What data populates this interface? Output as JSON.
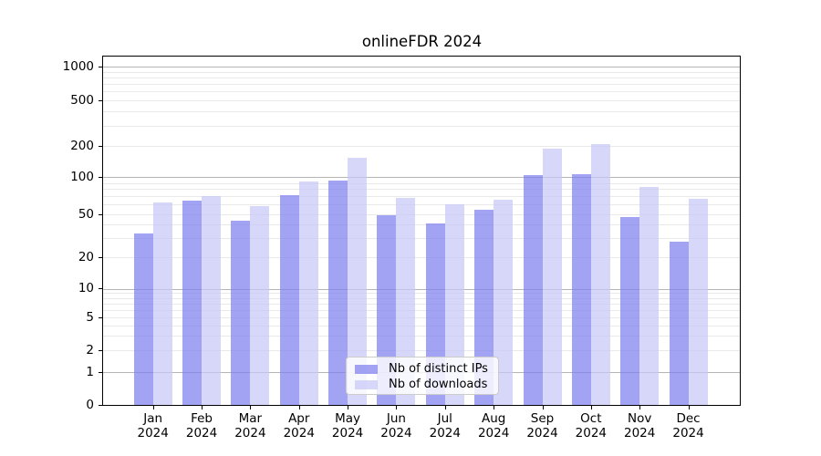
{
  "figure": {
    "title": "onlineFDR 2024"
  },
  "axes": {
    "y_ticks": [
      {
        "value": 0,
        "label": "0"
      },
      {
        "value": 1,
        "label": "1"
      },
      {
        "value": 2,
        "label": "2"
      },
      {
        "value": 5,
        "label": "5"
      },
      {
        "value": 10,
        "label": "10"
      },
      {
        "value": 20,
        "label": "20"
      },
      {
        "value": 50,
        "label": "50"
      },
      {
        "value": 100,
        "label": "100"
      },
      {
        "value": 200,
        "label": "200"
      },
      {
        "value": 500,
        "label": "500"
      },
      {
        "value": 1000,
        "label": "1000"
      }
    ],
    "x_ticks": [
      {
        "month": "Jan",
        "year": "2024"
      },
      {
        "month": "Feb",
        "year": "2024"
      },
      {
        "month": "Mar",
        "year": "2024"
      },
      {
        "month": "Apr",
        "year": "2024"
      },
      {
        "month": "May",
        "year": "2024"
      },
      {
        "month": "Jun",
        "year": "2024"
      },
      {
        "month": "Jul",
        "year": "2024"
      },
      {
        "month": "Aug",
        "year": "2024"
      },
      {
        "month": "Sep",
        "year": "2024"
      },
      {
        "month": "Oct",
        "year": "2024"
      },
      {
        "month": "Nov",
        "year": "2024"
      },
      {
        "month": "Dec",
        "year": "2024"
      }
    ]
  },
  "legend": {
    "items": [
      {
        "label": "Nb of distinct IPs",
        "swatch_color": "rgba(127,127,238,0.72)"
      },
      {
        "label": "Nb of downloads",
        "swatch_color": "rgba(200,200,246,0.72)"
      }
    ]
  },
  "chart_data": {
    "type": "bar",
    "title": "onlineFDR 2024",
    "categories": [
      "Jan 2024",
      "Feb 2024",
      "Mar 2024",
      "Apr 2024",
      "May 2024",
      "Jun 2024",
      "Jul 2024",
      "Aug 2024",
      "Sep 2024",
      "Oct 2024",
      "Nov 2024",
      "Dec 2024"
    ],
    "series": [
      {
        "name": "Nb of distinct IPs",
        "color": "rgba(127,127,238,0.72)",
        "values": [
          33,
          65,
          44,
          72,
          94,
          49,
          41,
          54,
          105,
          108,
          47,
          28
        ]
      },
      {
        "name": "Nb of downloads",
        "color": "rgba(200,200,246,0.72)",
        "values": [
          62,
          70,
          58,
          92,
          156,
          68,
          60,
          66,
          190,
          210,
          84,
          67
        ]
      }
    ],
    "yscale": "symlog",
    "ylim": [
      0,
      1100
    ],
    "ytick_values": [
      0,
      1,
      2,
      5,
      10,
      20,
      50,
      100,
      200,
      500,
      1000
    ],
    "major_gridline_values": [
      1,
      10,
      100,
      1000
    ],
    "minor_gridline_values": [
      3,
      4,
      6,
      7,
      8,
      9,
      30,
      40,
      60,
      70,
      80,
      90,
      300,
      400,
      600,
      700,
      800,
      900
    ],
    "grid": true,
    "legend_position": "lower center"
  },
  "colors": {
    "bar_distinct_ips": "rgba(127,127,238,0.72)",
    "bar_downloads": "rgba(200,200,246,0.72)",
    "grid_minor": "#e9e9e9",
    "grid_major": "#b5b5b5",
    "spine": "#000000",
    "legend_border": "#cccccc",
    "background": "#ffffff"
  }
}
